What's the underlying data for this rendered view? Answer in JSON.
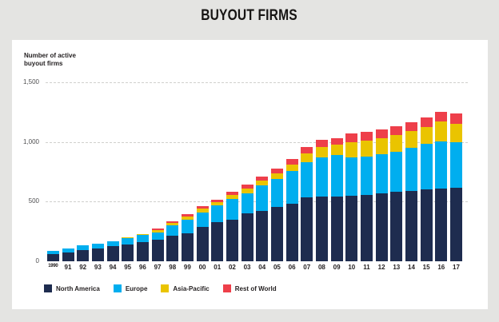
{
  "title": "BUYOUT FIRMS",
  "y_axis_title": "Number of active\nbuyout firms",
  "colors": {
    "background": "#e4e4e2",
    "panel": "#ffffff",
    "gridline": "#cfcfcd",
    "title_text": "#161413",
    "tick_text": "#4f4f51",
    "north_america": "#1e2c4f",
    "europe": "#00aeef",
    "asia_pacific": "#eac400",
    "rest_of_world": "#ee3f4a"
  },
  "chart_data": {
    "type": "bar",
    "stacked": true,
    "title": "BUYOUT FIRMS",
    "xlabel": "",
    "ylabel": "Number of active buyout firms",
    "ylim": [
      0,
      1500
    ],
    "grid": "horizontal-dashed",
    "legend_position": "bottom",
    "yticks": [
      {
        "value": 0,
        "label": "0",
        "gridline": false
      },
      {
        "value": 500,
        "label": "500",
        "gridline": true
      },
      {
        "value": 1000,
        "label": "1,000",
        "gridline": true
      },
      {
        "value": 1500,
        "label": "1,500",
        "gridline": true
      }
    ],
    "categories": [
      "1990",
      "91",
      "92",
      "93",
      "94",
      "95",
      "96",
      "97",
      "98",
      "99",
      "00",
      "01",
      "02",
      "03",
      "04",
      "05",
      "06",
      "07",
      "08",
      "09",
      "10",
      "11",
      "12",
      "13",
      "14",
      "15",
      "16",
      "17"
    ],
    "series": [
      {
        "name": "North America",
        "color": "#1e2c4f",
        "values": [
          60,
          75,
          95,
          108,
          127,
          142,
          160,
          180,
          215,
          237,
          290,
          330,
          350,
          400,
          420,
          453,
          480,
          534,
          540,
          545,
          552,
          555,
          572,
          580,
          592,
          600,
          607,
          614
        ]
      },
      {
        "name": "Europe",
        "color": "#00aeef",
        "values": [
          30,
          33,
          38,
          40,
          42,
          52,
          58,
          62,
          88,
          108,
          122,
          136,
          170,
          172,
          215,
          236,
          277,
          297,
          332,
          348,
          316,
          322,
          324,
          338,
          358,
          382,
          398,
          381
        ]
      },
      {
        "name": "Asia-Pacific",
        "color": "#eac400",
        "values": [
          0,
          0,
          0,
          0,
          0,
          6,
          8,
          22,
          21,
          27,
          27,
          27,
          34,
          40,
          41,
          47,
          54,
          75,
          85,
          83,
          130,
          135,
          135,
          143,
          143,
          143,
          166,
          160
        ]
      },
      {
        "name": "Rest of World",
        "color": "#ee3f4a",
        "values": [
          0,
          0,
          0,
          0,
          0,
          0,
          4,
          14,
          14,
          20,
          20,
          21,
          27,
          30,
          34,
          41,
          47,
          54,
          58,
          56,
          72,
          73,
          74,
          74,
          74,
          80,
          81,
          87
        ]
      }
    ]
  }
}
